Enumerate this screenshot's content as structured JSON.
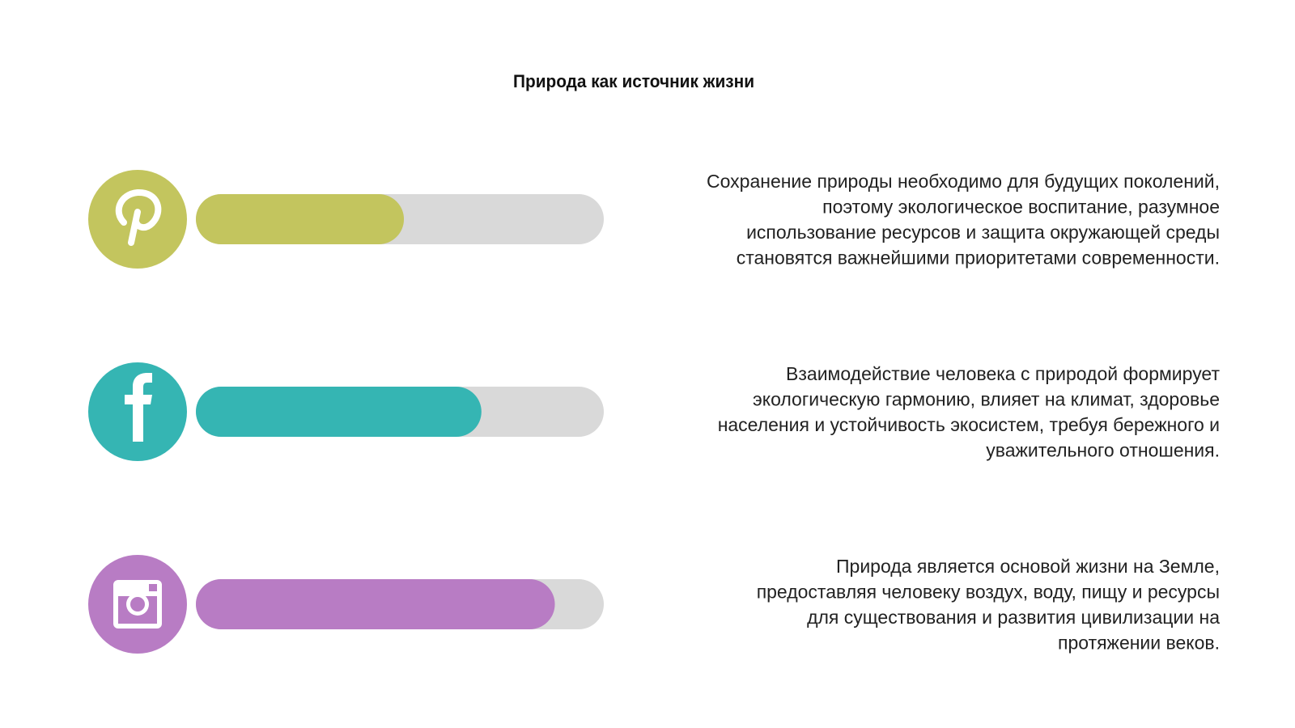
{
  "header": {
    "title": "Природа как источник жизни"
  },
  "items": [
    {
      "color": "#c3c55e",
      "progress": 51,
      "lines": [
        "Сохранение природы необходимо для будущих поколений,",
        "поэтому экологическое воспитание, разумное",
        "использование ресурсов и защита окружающей среды",
        "становятся важнейшими приоритетами современности."
      ]
    },
    {
      "color": "#35b5b3",
      "progress": 70,
      "lines": [
        "Взаимодействие человека с природой формирует",
        "экологическую гармонию, влияет на климат, здоровье",
        "населения и устойчивость экосистем, требуя бережного и",
        "уважительного отношения."
      ]
    },
    {
      "color": "#b87cc4",
      "progress": 88,
      "lines": [
        "Природа является основой жизни на Земле,",
        "предоставляя человеку воздух, воду, пищу и ресурсы",
        "для существования и развития цивилизации на",
        "протяжении веков."
      ]
    }
  ]
}
